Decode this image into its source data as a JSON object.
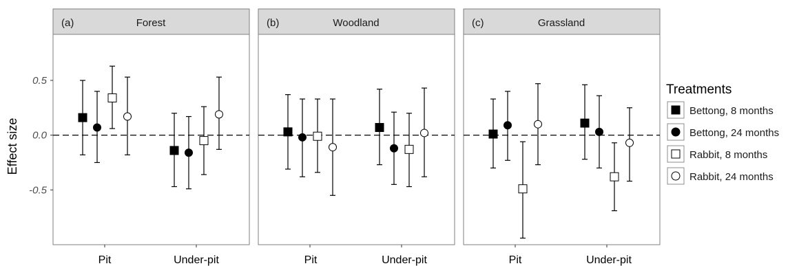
{
  "chart_data": {
    "type": "scatter",
    "ylabel": "Effect size",
    "y_ticks": [
      "0.5",
      "0.0",
      "-0.5"
    ],
    "y_tick_values": [
      0.5,
      0.0,
      -0.5
    ],
    "ylim": [
      -1.0,
      0.92
    ],
    "reference_line": 0.0,
    "categories": [
      "Pit",
      "Under-pit"
    ],
    "legend": {
      "title": "Treatments",
      "placement": "right",
      "entries": [
        {
          "label": "Bettong, 8 months",
          "marker": "square",
          "fill": "#000000"
        },
        {
          "label": "Bettong, 24 months",
          "marker": "circle",
          "fill": "#000000"
        },
        {
          "label": "Rabbit, 8 months",
          "marker": "square",
          "fill": "#ffffff"
        },
        {
          "label": "Rabbit, 24 months",
          "marker": "circle",
          "fill": "#ffffff"
        }
      ]
    },
    "panels": [
      {
        "tag": "(a)",
        "title": "Forest",
        "points": [
          {
            "category": "Pit",
            "treatment": 0,
            "y": 0.16,
            "lo": -0.18,
            "hi": 0.5
          },
          {
            "category": "Pit",
            "treatment": 1,
            "y": 0.07,
            "lo": -0.25,
            "hi": 0.4
          },
          {
            "category": "Pit",
            "treatment": 2,
            "y": 0.34,
            "lo": 0.06,
            "hi": 0.63
          },
          {
            "category": "Pit",
            "treatment": 3,
            "y": 0.17,
            "lo": -0.18,
            "hi": 0.53
          },
          {
            "category": "Under-pit",
            "treatment": 0,
            "y": -0.14,
            "lo": -0.47,
            "hi": 0.2
          },
          {
            "category": "Under-pit",
            "treatment": 1,
            "y": -0.16,
            "lo": -0.49,
            "hi": 0.17
          },
          {
            "category": "Under-pit",
            "treatment": 2,
            "y": -0.05,
            "lo": -0.36,
            "hi": 0.26
          },
          {
            "category": "Under-pit",
            "treatment": 3,
            "y": 0.19,
            "lo": -0.13,
            "hi": 0.53
          }
        ]
      },
      {
        "tag": "(b)",
        "title": "Woodland",
        "points": [
          {
            "category": "Pit",
            "treatment": 0,
            "y": 0.03,
            "lo": -0.31,
            "hi": 0.37
          },
          {
            "category": "Pit",
            "treatment": 1,
            "y": -0.02,
            "lo": -0.38,
            "hi": 0.33
          },
          {
            "category": "Pit",
            "treatment": 2,
            "y": -0.01,
            "lo": -0.34,
            "hi": 0.33
          },
          {
            "category": "Pit",
            "treatment": 3,
            "y": -0.11,
            "lo": -0.55,
            "hi": 0.33
          },
          {
            "category": "Under-pit",
            "treatment": 0,
            "y": 0.07,
            "lo": -0.27,
            "hi": 0.42
          },
          {
            "category": "Under-pit",
            "treatment": 1,
            "y": -0.12,
            "lo": -0.45,
            "hi": 0.21
          },
          {
            "category": "Under-pit",
            "treatment": 2,
            "y": -0.13,
            "lo": -0.47,
            "hi": 0.2
          },
          {
            "category": "Under-pit",
            "treatment": 3,
            "y": 0.02,
            "lo": -0.38,
            "hi": 0.43
          }
        ]
      },
      {
        "tag": "(c)",
        "title": "Grassland",
        "points": [
          {
            "category": "Pit",
            "treatment": 0,
            "y": 0.01,
            "lo": -0.3,
            "hi": 0.33
          },
          {
            "category": "Pit",
            "treatment": 1,
            "y": 0.09,
            "lo": -0.23,
            "hi": 0.4
          },
          {
            "category": "Pit",
            "treatment": 2,
            "y": -0.49,
            "lo": -0.94,
            "hi": -0.06
          },
          {
            "category": "Pit",
            "treatment": 3,
            "y": 0.1,
            "lo": -0.27,
            "hi": 0.47
          },
          {
            "category": "Under-pit",
            "treatment": 0,
            "y": 0.11,
            "lo": -0.22,
            "hi": 0.46
          },
          {
            "category": "Under-pit",
            "treatment": 1,
            "y": 0.03,
            "lo": -0.3,
            "hi": 0.36
          },
          {
            "category": "Under-pit",
            "treatment": 2,
            "y": -0.38,
            "lo": -0.69,
            "hi": -0.07
          },
          {
            "category": "Under-pit",
            "treatment": 3,
            "y": -0.07,
            "lo": -0.42,
            "hi": 0.25
          }
        ]
      }
    ]
  }
}
